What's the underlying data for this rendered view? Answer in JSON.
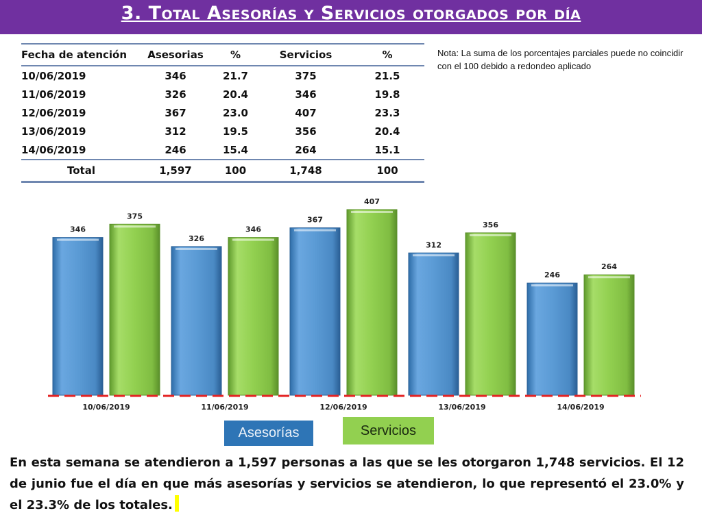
{
  "title": "3. Total Asesorías y Servicios otorgados por día",
  "table": {
    "headers": [
      "Fecha de atención",
      "Asesorias",
      "%",
      "Servicios",
      "%"
    ],
    "rows": [
      [
        "10/06/2019",
        "346",
        "21.7",
        "375",
        "21.5"
      ],
      [
        "11/06/2019",
        "326",
        "20.4",
        "346",
        "19.8"
      ],
      [
        "12/06/2019",
        "367",
        "23.0",
        "407",
        "23.3"
      ],
      [
        "13/06/2019",
        "312",
        "19.5",
        "356",
        "20.4"
      ],
      [
        "14/06/2019",
        "246",
        "15.4",
        "264",
        "15.1"
      ]
    ],
    "total": [
      "Total",
      "1,597",
      "100",
      "1,748",
      "100"
    ]
  },
  "note": "Nota: La suma de los porcentajes parciales puede no coincidir con el 100 debido a redondeo aplicado",
  "chart_data": {
    "type": "bar",
    "categories": [
      "10/06/2019",
      "11/06/2019",
      "12/06/2019",
      "13/06/2019",
      "14/06/2019"
    ],
    "series": [
      {
        "name": "Asesorías",
        "values": [
          346,
          326,
          367,
          312,
          246
        ],
        "color": "#5b9bd5"
      },
      {
        "name": "Servicios",
        "values": [
          375,
          346,
          407,
          356,
          264
        ],
        "color": "#92d050"
      }
    ],
    "ylim": [
      0,
      407
    ],
    "grid": false,
    "axis_color": "#e32222",
    "legend_placement": "bottom-center"
  },
  "legend": {
    "asesorias": "Asesorías",
    "servicios": "Servicios"
  },
  "summary": "En esta semana se atendieron a 1,597 personas a las que se les otorgaron 1,748 servicios. El 12 de junio fue el día en que más asesorías y servicios se atendieron, lo que representó  el 23.0% y el 23.3% de los totales."
}
